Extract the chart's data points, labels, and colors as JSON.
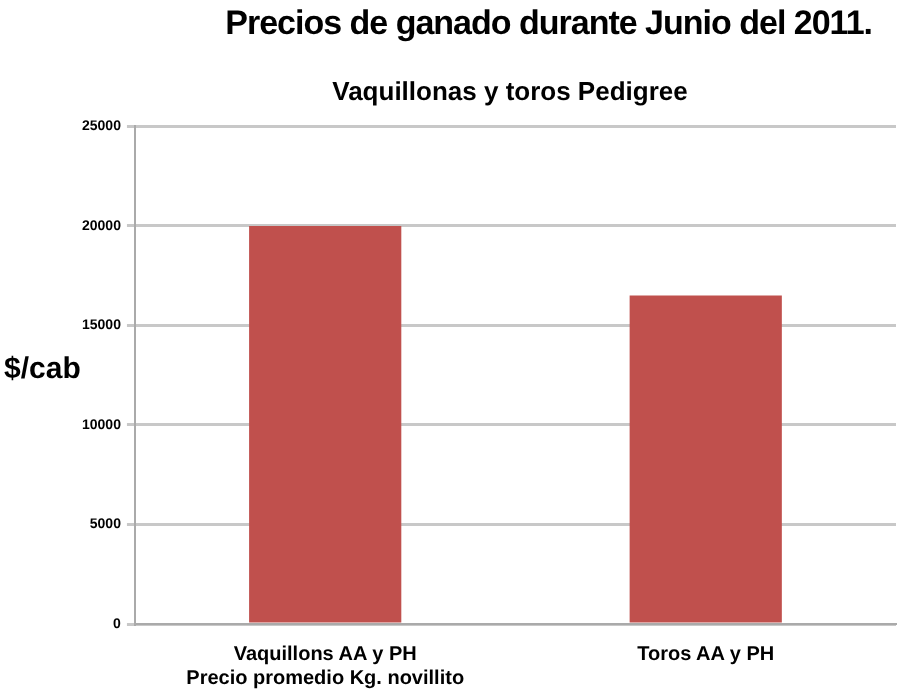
{
  "chart_data": {
    "type": "bar",
    "title": "Precios de ganado durante Junio del 2011.",
    "subtitle": "Vaquillonas y toros Pedigree",
    "ylabel": "$/cab",
    "categories": [
      "Vaquillons AA y PH\nPrecio promedio Kg. novillito",
      "Toros AA y PH"
    ],
    "values": [
      20000,
      16500
    ],
    "color": "#c0504d",
    "ylim": [
      0,
      25000
    ],
    "yticks": [
      0,
      5000,
      10000,
      15000,
      20000,
      25000
    ],
    "grid": "y",
    "legend": false
  }
}
